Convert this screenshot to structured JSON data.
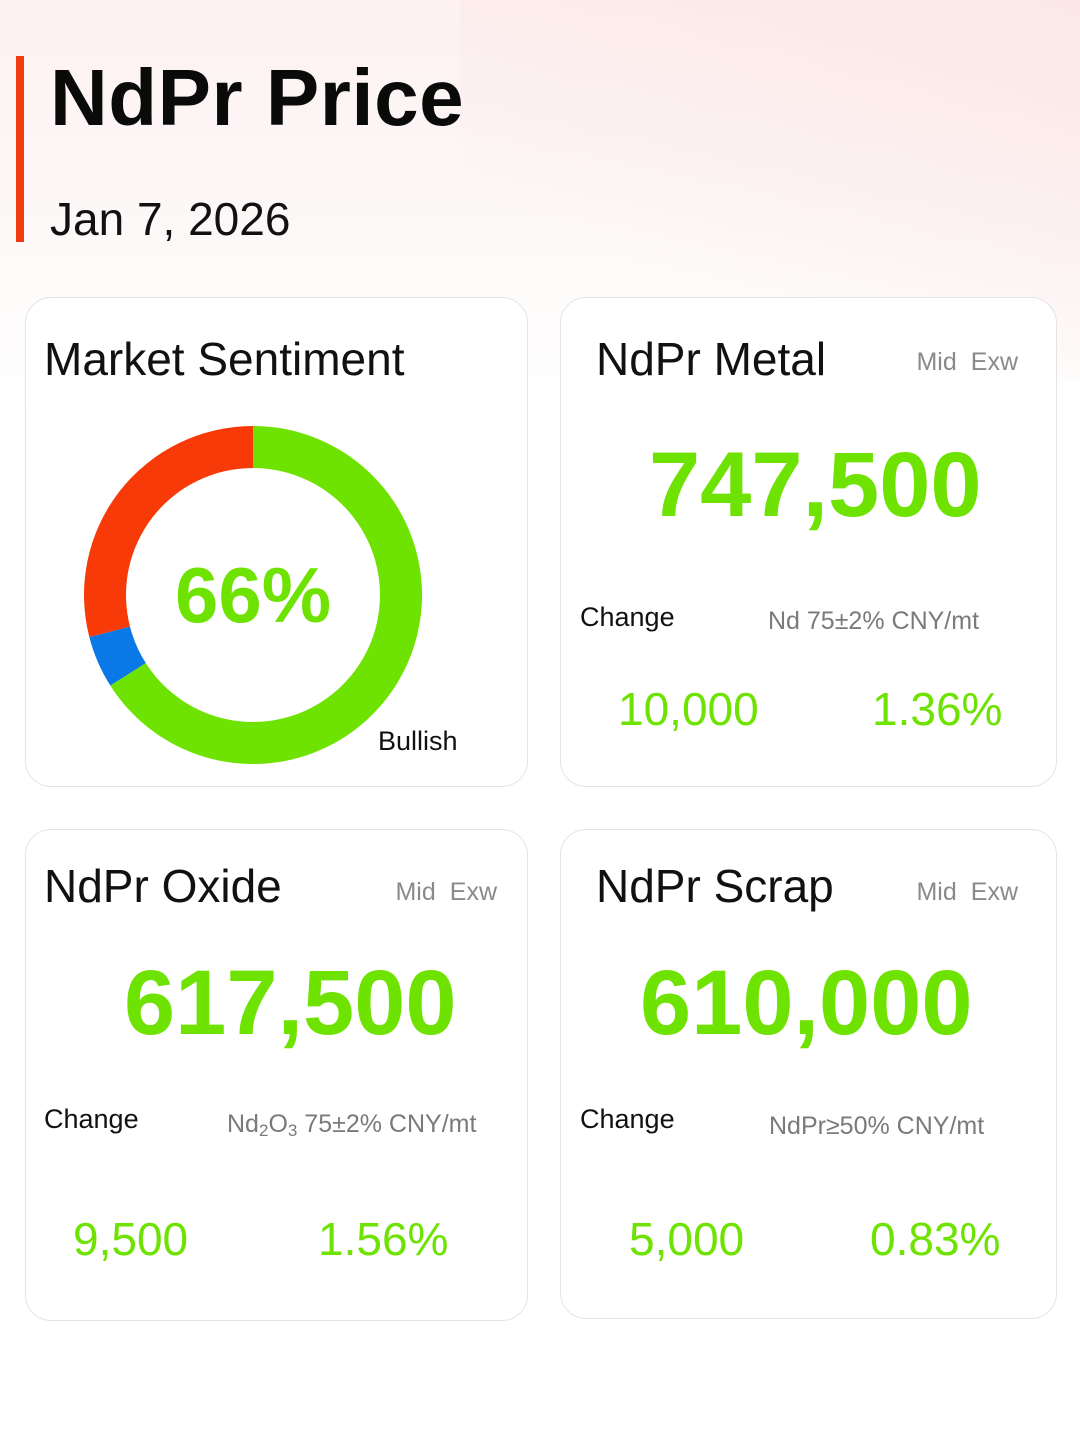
{
  "header": {
    "title": "NdPr Price",
    "date": "Jan 7, 2026",
    "accent_color": "#f03c0e"
  },
  "sentiment": {
    "title": "Market Sentiment",
    "percent_label": "66%",
    "label": "Bullish",
    "segments": [
      {
        "share": 0.66,
        "color": "#6ee200"
      },
      {
        "share": 0.05,
        "color": "#0a78e6"
      },
      {
        "share": 0.29,
        "color": "#f73a08"
      }
    ]
  },
  "metal": {
    "title": "NdPr Metal",
    "tag_mid": "Mid",
    "tag_exw": "Exw",
    "price": "747,500",
    "change_label": "Change",
    "spec": "Nd 75±2% CNY/mt",
    "change_abs": "10,000",
    "change_pct": "1.36%"
  },
  "oxide": {
    "title": "NdPr Oxide",
    "tag_mid": "Mid",
    "tag_exw": "Exw",
    "price": "617,500",
    "change_label": "Change",
    "spec_prefix": "Nd",
    "spec_sub1": "2",
    "spec_mid": "O",
    "spec_sub2": "3",
    "spec_suffix": " 75±2% CNY/mt",
    "change_abs": "9,500",
    "change_pct": "1.56%"
  },
  "scrap": {
    "title": "NdPr Scrap",
    "tag_mid": "Mid",
    "tag_exw": "Exw",
    "price": "610,000",
    "change_label": "Change",
    "spec": "NdPr≥50% CNY/mt",
    "change_abs": "5,000",
    "change_pct": "0.83%"
  },
  "colors": {
    "positive": "#6ee200",
    "muted_text": "#8a8a8a"
  }
}
